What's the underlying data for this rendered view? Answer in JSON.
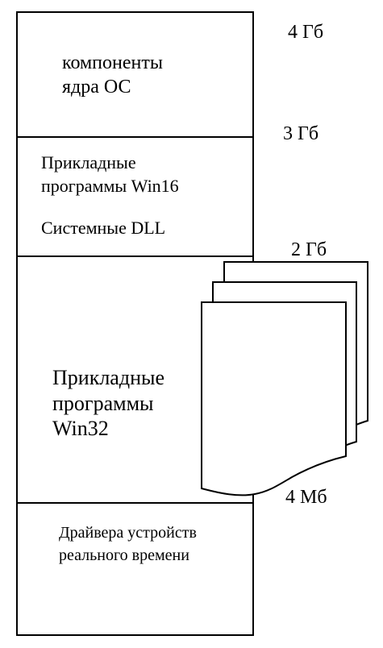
{
  "address_labels": {
    "top_4gb": "4 Гб",
    "mark_3gb": "3 Гб",
    "mark_2gb": "2 Гб",
    "mark_4mb": "4 Мб"
  },
  "regions": {
    "os_kernel": {
      "line1": "компоненты",
      "line2": "ядра ОС"
    },
    "win16": {
      "line1": "Прикладные",
      "line2": "программы Win16",
      "line3": "Системные DLL"
    },
    "win32": {
      "line1": "Прикладные",
      "line2": "программы",
      "line3": "Win32"
    },
    "realtime_drivers": {
      "line1": "Драйвера  устройств",
      "line2": "реального времени"
    }
  }
}
